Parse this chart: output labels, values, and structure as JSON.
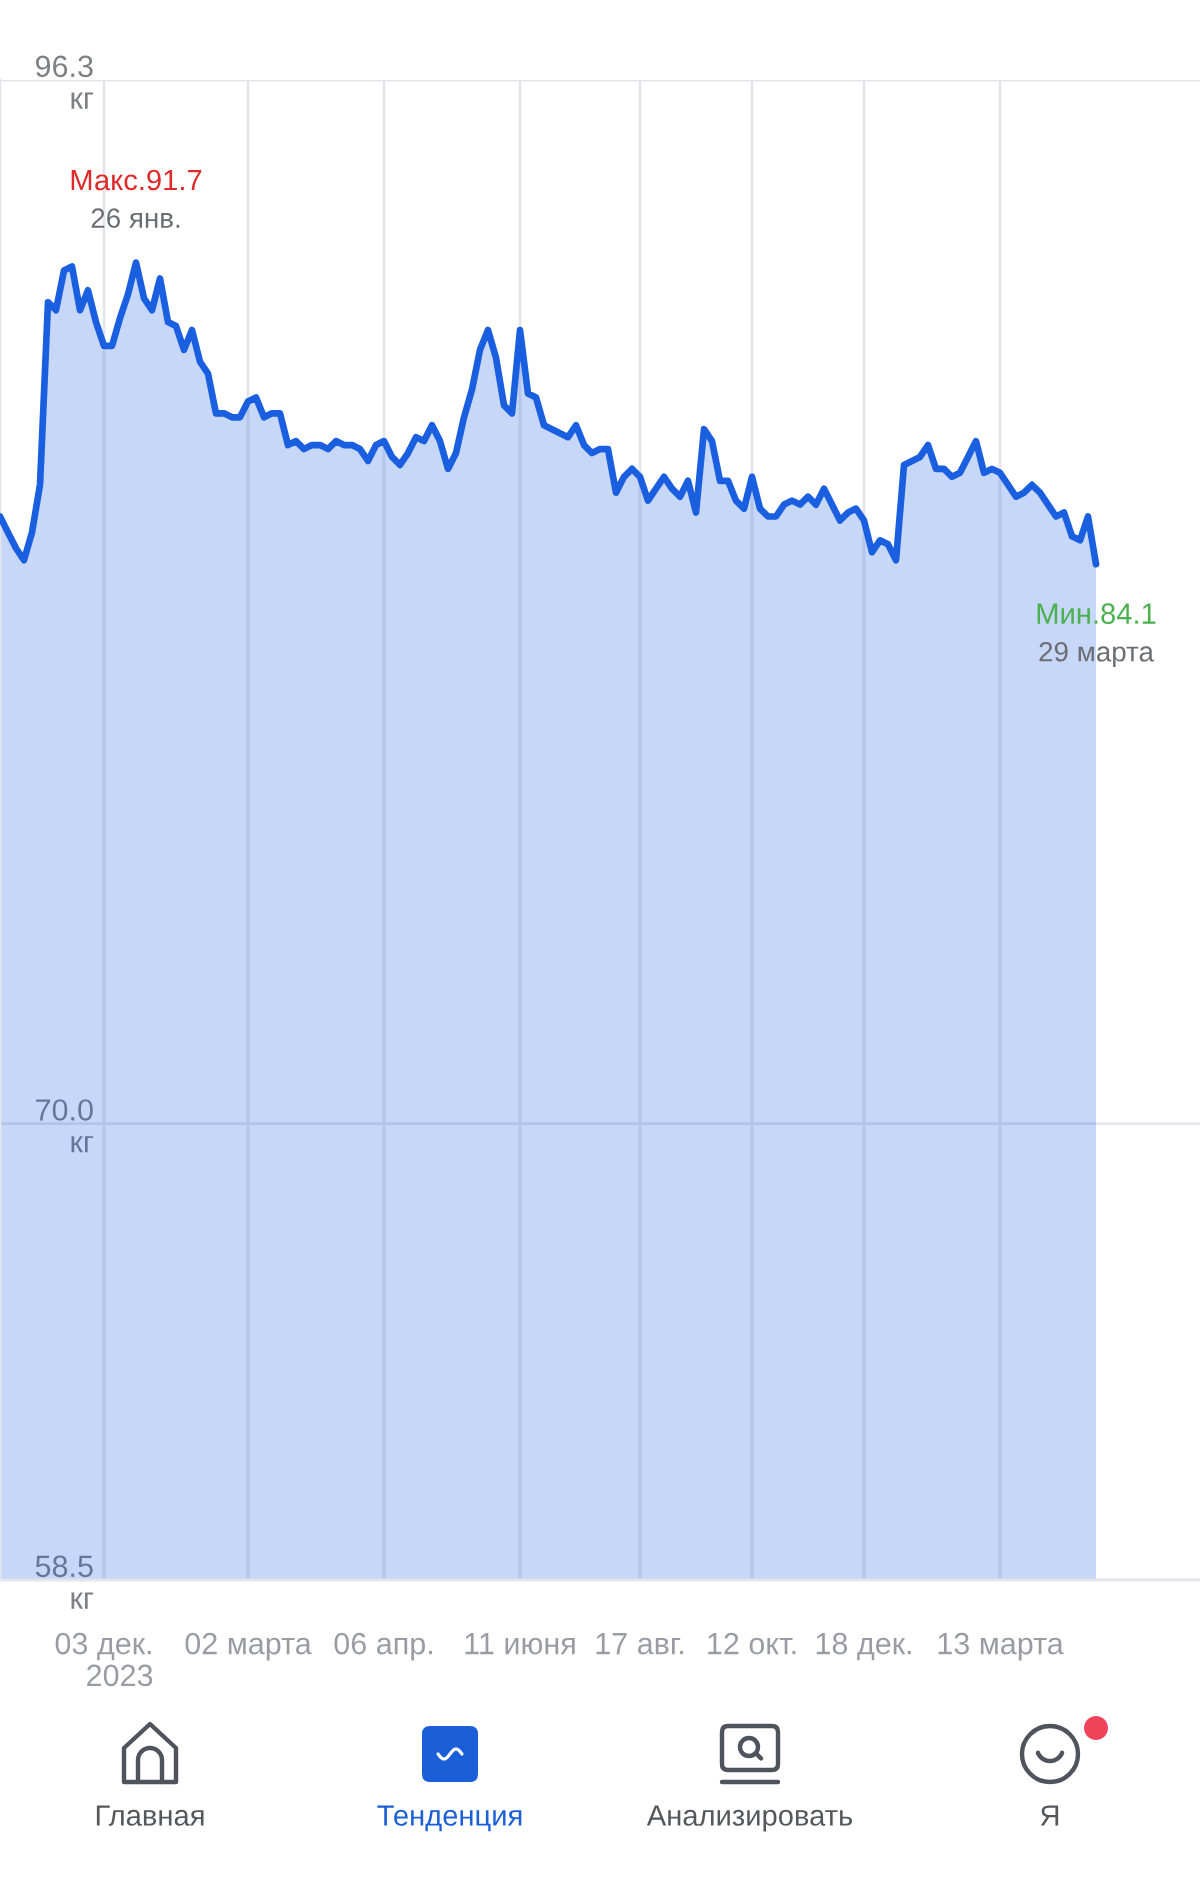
{
  "chart_data": {
    "type": "area",
    "categories": [
      null,
      null,
      null,
      null,
      null,
      null,
      null,
      null,
      null,
      null,
      null,
      null,
      null,
      "03 дек.\n2023",
      null,
      null,
      null,
      null,
      null,
      null,
      null,
      null,
      null,
      null,
      null,
      null,
      null,
      null,
      null,
      null,
      null,
      "02 марта",
      null,
      null,
      null,
      null,
      null,
      null,
      null,
      null,
      null,
      null,
      null,
      null,
      null,
      null,
      null,
      null,
      "06 апр.",
      null,
      null,
      null,
      null,
      null,
      null,
      null,
      null,
      null,
      null,
      null,
      null,
      null,
      null,
      null,
      null,
      "11 июня",
      null,
      null,
      null,
      null,
      null,
      null,
      null,
      null,
      null,
      null,
      null,
      null,
      null,
      null,
      "17 авг.",
      null,
      null,
      null,
      null,
      null,
      null,
      null,
      null,
      null,
      null,
      null,
      null,
      null,
      "12 окт.",
      null,
      null,
      null,
      null,
      null,
      null,
      null,
      null,
      null,
      null,
      null,
      null,
      null,
      "18 дек.",
      null,
      null,
      null,
      null,
      null,
      null,
      null,
      null,
      null,
      null,
      null,
      null,
      null,
      null,
      null,
      null,
      "13 марта",
      null,
      null,
      null,
      null,
      null,
      null,
      null,
      null,
      null,
      null,
      null,
      null
    ],
    "values": [
      85.3,
      84.9,
      84.5,
      84.2,
      84.9,
      86.1,
      90.7,
      90.5,
      91.5,
      91.6,
      90.5,
      91.0,
      90.2,
      89.6,
      89.6,
      90.3,
      90.9,
      91.7,
      90.8,
      90.5,
      91.3,
      90.2,
      90.1,
      89.5,
      90.0,
      89.2,
      88.9,
      87.9,
      87.9,
      87.8,
      87.8,
      88.2,
      88.3,
      87.8,
      87.9,
      87.9,
      87.1,
      87.2,
      87.0,
      87.1,
      87.1,
      87.0,
      87.2,
      87.1,
      87.1,
      87.0,
      86.7,
      87.1,
      87.2,
      86.8,
      86.6,
      86.9,
      87.3,
      87.2,
      87.6,
      87.2,
      86.5,
      86.9,
      87.8,
      88.5,
      89.5,
      90.0,
      89.3,
      88.1,
      87.9,
      90.0,
      88.4,
      88.3,
      87.6,
      87.5,
      87.4,
      87.3,
      87.6,
      87.1,
      86.9,
      87.0,
      87.0,
      85.9,
      86.3,
      86.5,
      86.3,
      85.7,
      86.0,
      86.3,
      86.0,
      85.8,
      86.2,
      85.4,
      87.5,
      87.2,
      86.2,
      86.2,
      85.7,
      85.5,
      86.3,
      85.5,
      85.3,
      85.3,
      85.6,
      85.7,
      85.6,
      85.8,
      85.6,
      86.0,
      85.6,
      85.2,
      85.4,
      85.5,
      85.2,
      84.4,
      84.7,
      84.6,
      84.2,
      86.6,
      86.7,
      86.8,
      87.1,
      86.5,
      86.5,
      86.3,
      86.4,
      86.8,
      87.2,
      86.4,
      86.5,
      86.4,
      86.1,
      85.8,
      85.9,
      86.1,
      85.9,
      85.6,
      85.3,
      85.4,
      84.8,
      84.7,
      85.3,
      84.1
    ],
    "color": "#1a5fe0",
    "ylim": [
      58.5,
      96.3
    ],
    "yticks": [
      {
        "value": 58.5,
        "label": "58.5\nкг"
      },
      {
        "value": 70.0,
        "label": "70.0\nкг"
      },
      {
        "value": 96.3,
        "label": "96.3\nкг"
      }
    ],
    "grid": true,
    "annotations": [
      {
        "text": "Макс.91.7\n26 янв.",
        "y": 91.7
      },
      {
        "text": "Мин.84.1\n29 марта",
        "y": 84.1
      },
      "Главная",
      "Тенденция",
      "Анализировать",
      "Я"
    ]
  }
}
